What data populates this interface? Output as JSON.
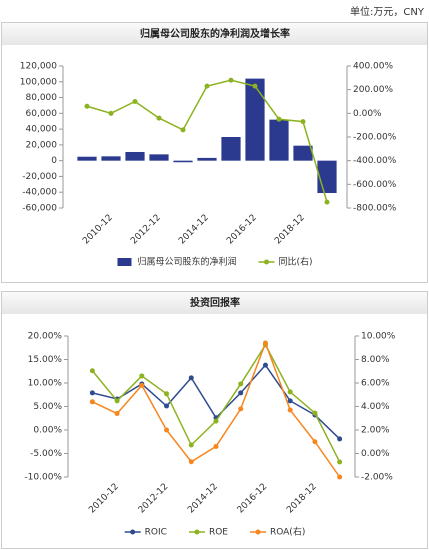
{
  "header": {
    "unit": "单位:万元，CNY"
  },
  "chart_data": [
    {
      "type": "bar_line",
      "title": "归属母公司股东的净利润及增长率",
      "categories": [
        null,
        "2010-12",
        null,
        "2012-12",
        null,
        "2014-12",
        null,
        "2016-12",
        null,
        "2018-12",
        null
      ],
      "series": [
        {
          "name": "归属母公司股东的净利润",
          "type": "bar",
          "color": "#2b3a8f",
          "values": [
            5000,
            5500,
            11000,
            8000,
            -2000,
            3500,
            30000,
            104000,
            52000,
            19000,
            -41000
          ]
        },
        {
          "name": "同比(右)",
          "type": "line",
          "axis": "y2",
          "color": "#8cb21f",
          "values": [
            60,
            0,
            100,
            -40,
            -140,
            230,
            280,
            230,
            -50,
            -70,
            -750
          ]
        }
      ],
      "ylim": [
        -60000,
        120000
      ],
      "yticks": [
        {
          "value": -60000,
          "label": "-60,000"
        },
        {
          "value": -40000,
          "label": "-40,000"
        },
        {
          "value": -20000,
          "label": "-20,000"
        },
        0,
        {
          "value": 20000,
          "label": "20,000"
        },
        {
          "value": 40000,
          "label": "40,000"
        },
        {
          "value": 60000,
          "label": "60,000"
        },
        {
          "value": 80000,
          "label": "80,000"
        },
        {
          "value": 100000,
          "label": "100,000"
        },
        {
          "value": 120000,
          "label": "120,000"
        }
      ],
      "y2lim": [
        -800,
        400
      ],
      "y2ticks": [
        {
          "value": -800,
          "label": "-800.00%"
        },
        {
          "value": -600,
          "label": "-600.00%"
        },
        {
          "value": -400,
          "label": "-400.00%"
        },
        {
          "value": -200,
          "label": "-200.00%"
        },
        {
          "value": 0,
          "label": "0.00%"
        },
        {
          "value": 200,
          "label": "200.00%"
        },
        {
          "value": 400,
          "label": "400.00%"
        }
      ],
      "grid": false
    },
    {
      "type": "line",
      "title": "投资回报率",
      "categories": [
        null,
        "2010-12",
        null,
        "2012-12",
        null,
        "2014-12",
        null,
        "2016-12",
        null,
        "2018-12",
        null
      ],
      "series": [
        {
          "name": "ROIC",
          "color": "#2e4b8f",
          "values": [
            7.9,
            6.6,
            9.8,
            5.1,
            11.1,
            2.6,
            7.9,
            13.8,
            6.2,
            3.2,
            -1.9
          ]
        },
        {
          "name": "ROE",
          "color": "#8cb21f",
          "values": [
            12.6,
            6.2,
            11.5,
            7.7,
            -3.2,
            1.9,
            9.8,
            18.1,
            8.1,
            3.6,
            -6.8
          ]
        },
        {
          "name": "ROA(右)",
          "axis": "y2",
          "color": "#f7861e",
          "values": [
            4.4,
            3.4,
            5.8,
            2.0,
            -0.7,
            0.6,
            3.8,
            9.4,
            3.7,
            1.0,
            -2.0
          ]
        }
      ],
      "ylim": [
        -10,
        20
      ],
      "yticks": [
        {
          "value": -10,
          "label": "-10.00%"
        },
        {
          "value": -5,
          "label": "-5.00%"
        },
        {
          "value": 0,
          "label": "0.00%"
        },
        {
          "value": 5,
          "label": "5.00%"
        },
        {
          "value": 10,
          "label": "10.00%"
        },
        {
          "value": 15,
          "label": "15.00%"
        },
        {
          "value": 20,
          "label": "20.00%"
        }
      ],
      "y2lim": [
        -2,
        10
      ],
      "y2ticks": [
        {
          "value": -2,
          "label": "-2.00%"
        },
        {
          "value": 0,
          "label": "0.00%"
        },
        {
          "value": 2,
          "label": "2.00%"
        },
        {
          "value": 4,
          "label": "4.00%"
        },
        {
          "value": 6,
          "label": "6.00%"
        },
        {
          "value": 8,
          "label": "8.00%"
        },
        {
          "value": 10,
          "label": "10.00%"
        }
      ],
      "grid": false
    }
  ]
}
